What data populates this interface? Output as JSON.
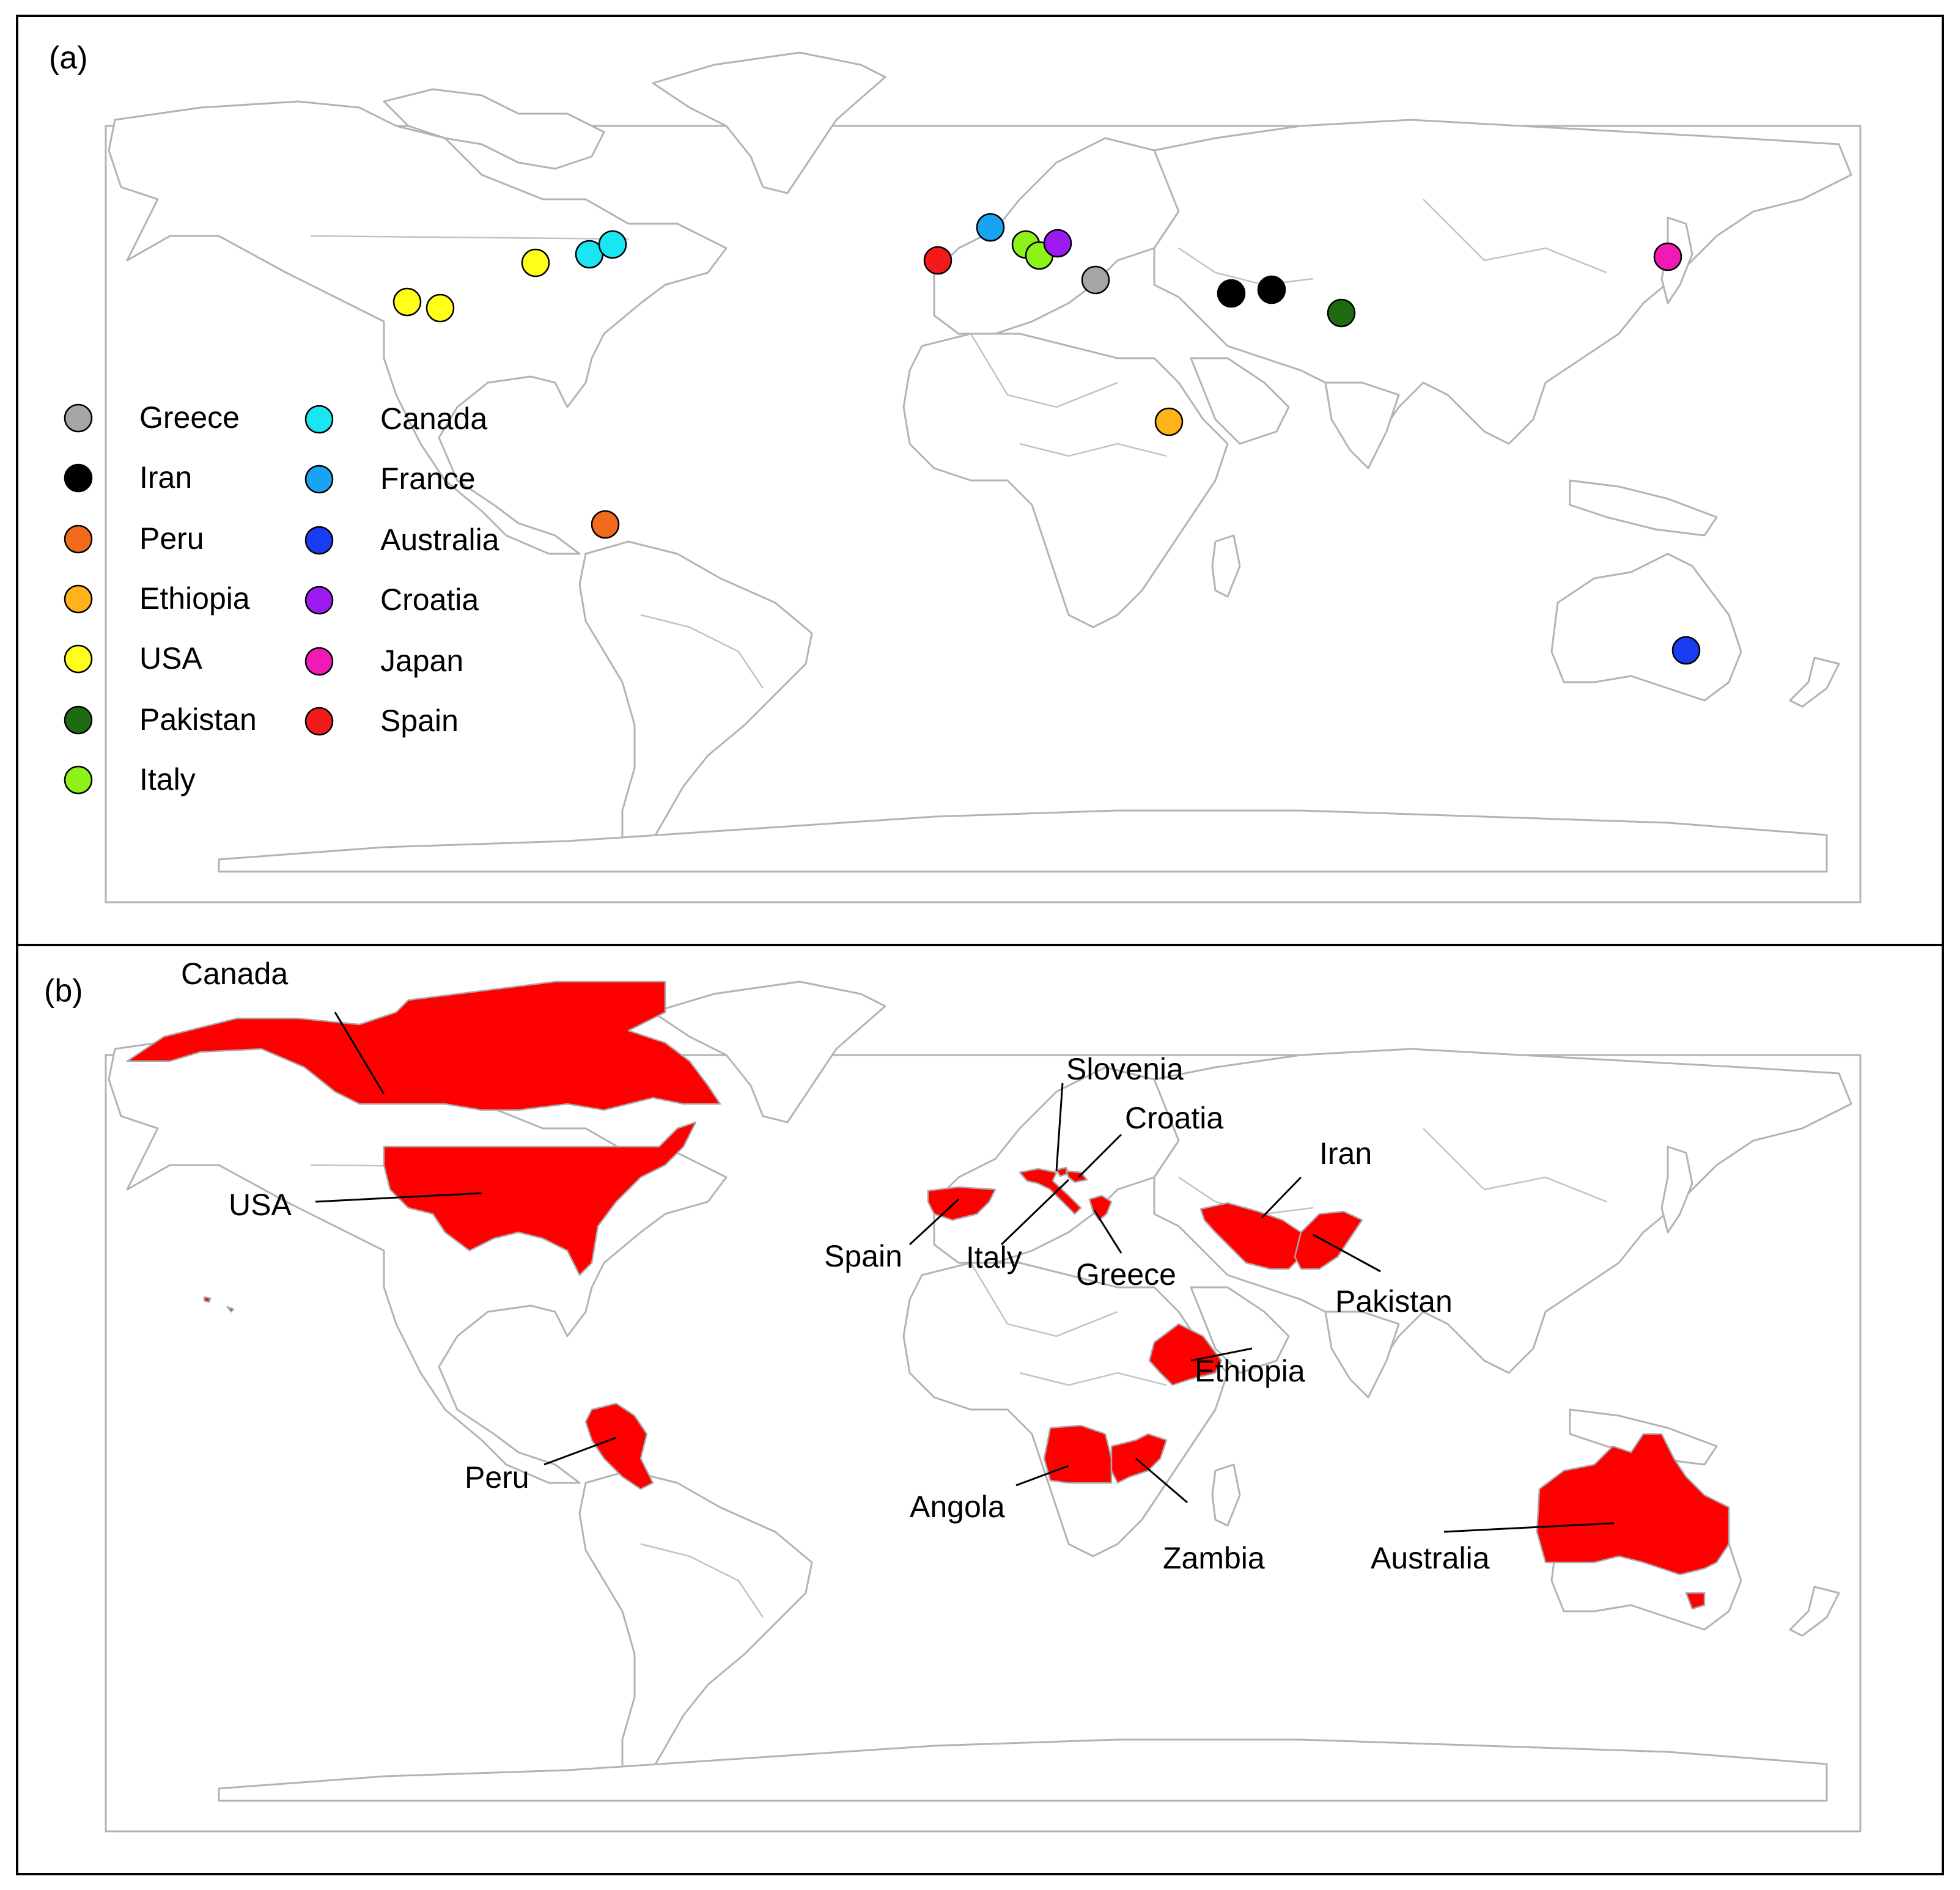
{
  "panels": [
    {
      "label": "(a)"
    },
    {
      "label": "(b)"
    }
  ],
  "panel_a": {
    "legend": [
      {
        "name": "Greece",
        "color": "#a6a6a6"
      },
      {
        "name": "Iran",
        "color": "#000000"
      },
      {
        "name": "Peru",
        "color": "#f26a1b"
      },
      {
        "name": "Ethiopia",
        "color": "#ffb21a"
      },
      {
        "name": "USA",
        "color": "#ffff1a"
      },
      {
        "name": "Pakistan",
        "color": "#1e6b12"
      },
      {
        "name": "Italy",
        "color": "#8cf21a"
      },
      {
        "name": "Canada",
        "color": "#1ae6f2"
      },
      {
        "name": "France",
        "color": "#1aa3f2"
      },
      {
        "name": "Australia",
        "color": "#1a3cf2"
      },
      {
        "name": "Croatia",
        "color": "#9c1af2"
      },
      {
        "name": "Japan",
        "color": "#f21ab5"
      },
      {
        "name": "Spain",
        "color": "#f21a1a"
      }
    ],
    "sites": [
      {
        "country": "USA",
        "lon": -121.5,
        "lat": 38.5
      },
      {
        "country": "USA",
        "lon": -117.5,
        "lat": 37.5
      },
      {
        "country": "USA",
        "lon": -97.0,
        "lat": 44.0
      },
      {
        "country": "Canada",
        "lon": -80.5,
        "lat": 45.5
      },
      {
        "country": "Canada",
        "lon": -76.5,
        "lat": 47.0
      },
      {
        "country": "France",
        "lon": 0.5,
        "lat": 48.0
      },
      {
        "country": "Spain",
        "lon": -6.5,
        "lat": 42.5
      },
      {
        "country": "Italy",
        "lon": 9.0,
        "lat": 45.5
      },
      {
        "country": "Italy",
        "lon": 11.0,
        "lat": 43.5
      },
      {
        "country": "Croatia",
        "lon": 15.5,
        "lat": 45.5
      },
      {
        "country": "Greece",
        "lon": 22.0,
        "lat": 39.5
      },
      {
        "country": "Iran",
        "lon": 43.0,
        "lat": 37.5
      },
      {
        "country": "Iran",
        "lon": 48.5,
        "lat": 38.0
      },
      {
        "country": "Pakistan",
        "lon": 58.5,
        "lat": 34.0
      },
      {
        "country": "Ethiopia",
        "lon": 32.0,
        "lat": 15.5
      },
      {
        "country": "Peru",
        "lon": -78.0,
        "lat": -7.5
      },
      {
        "country": "Japan",
        "lon": 104.5,
        "lat": 43.0
      },
      {
        "country": "Australia",
        "lon": 107.0,
        "lat": -39.5
      }
    ]
  },
  "panel_b": {
    "highlighted_color": "#ff0000",
    "country_labels": [
      {
        "name": "Canada"
      },
      {
        "name": "USA"
      },
      {
        "name": "Slovenia"
      },
      {
        "name": "Croatia"
      },
      {
        "name": "Iran"
      },
      {
        "name": "Spain"
      },
      {
        "name": "Italy"
      },
      {
        "name": "Greece"
      },
      {
        "name": "Pakistan"
      },
      {
        "name": "Ethiopia"
      },
      {
        "name": "Peru"
      },
      {
        "name": "Angola"
      },
      {
        "name": "Zambia"
      },
      {
        "name": "Australia"
      }
    ]
  }
}
